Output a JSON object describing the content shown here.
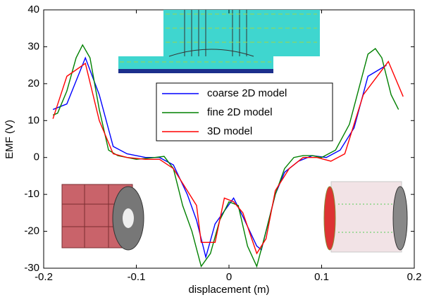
{
  "chart_data": {
    "type": "line",
    "xlabel": "displacement (m)",
    "ylabel": "EMF (V)",
    "xlim": [
      -0.2,
      0.2
    ],
    "xticks": [
      -0.2,
      -0.1,
      0,
      0.1,
      0.2
    ],
    "ylim": [
      -30,
      40
    ],
    "yticks": [
      -30,
      -20,
      -10,
      0,
      10,
      20,
      30,
      40
    ],
    "series": [
      {
        "name": "coarse 2D model",
        "color": "#0000ff",
        "x": [
          -0.19,
          -0.175,
          -0.155,
          -0.14,
          -0.125,
          -0.11,
          -0.09,
          -0.075,
          -0.06,
          -0.045,
          -0.035,
          -0.025,
          -0.015,
          0.005,
          0.015,
          0.03,
          0.035,
          0.05,
          0.06,
          0.075,
          0.09,
          0.105,
          0.12,
          0.135,
          0.15,
          0.17
        ],
        "values": [
          13,
          14.5,
          27,
          17,
          3,
          1,
          0,
          0,
          -2,
          -10,
          -17,
          -27,
          -18,
          -11,
          -16,
          -24,
          -25,
          -10,
          -4,
          -1,
          0.5,
          0,
          2,
          8,
          22,
          25
        ]
      },
      {
        "name": "fine 2D model",
        "color": "#008000",
        "x": [
          -0.19,
          -0.185,
          -0.175,
          -0.165,
          -0.158,
          -0.15,
          -0.14,
          -0.13,
          -0.12,
          -0.1,
          -0.08,
          -0.07,
          -0.06,
          -0.05,
          -0.04,
          -0.03,
          -0.02,
          -0.01,
          0,
          0.01,
          0.02,
          0.03,
          0.04,
          0.05,
          0.06,
          0.07,
          0.08,
          0.09,
          0.1,
          0.115,
          0.13,
          0.15,
          0.158,
          0.165,
          0.175,
          0.183
        ],
        "values": [
          11.5,
          12,
          18,
          27,
          30.5,
          27,
          13,
          2,
          0.5,
          -0.5,
          0,
          0.3,
          -3,
          -13,
          -20,
          -29.5,
          -26,
          -17,
          -12,
          -13,
          -24,
          -29.5,
          -20,
          -10,
          -3,
          0,
          0.5,
          0.5,
          0,
          2,
          9,
          28,
          29.5,
          27,
          17,
          13
        ]
      },
      {
        "name": "3D model",
        "color": "#ff0000",
        "x": [
          -0.19,
          -0.175,
          -0.155,
          -0.14,
          -0.125,
          -0.11,
          -0.09,
          -0.075,
          -0.06,
          -0.045,
          -0.035,
          -0.03,
          -0.015,
          -0.005,
          0.005,
          0.015,
          0.03,
          0.04,
          0.05,
          0.065,
          0.08,
          0.095,
          0.11,
          0.125,
          0.145,
          0.172,
          0.188
        ],
        "values": [
          10.5,
          22,
          25.5,
          10,
          1,
          0,
          -0.5,
          -0.5,
          -3,
          -9,
          -13,
          -23,
          -23,
          -11,
          -12,
          -15,
          -26,
          -22,
          -9,
          -3,
          0,
          0,
          -1,
          1,
          17,
          26,
          16.5
        ]
      }
    ]
  }
}
